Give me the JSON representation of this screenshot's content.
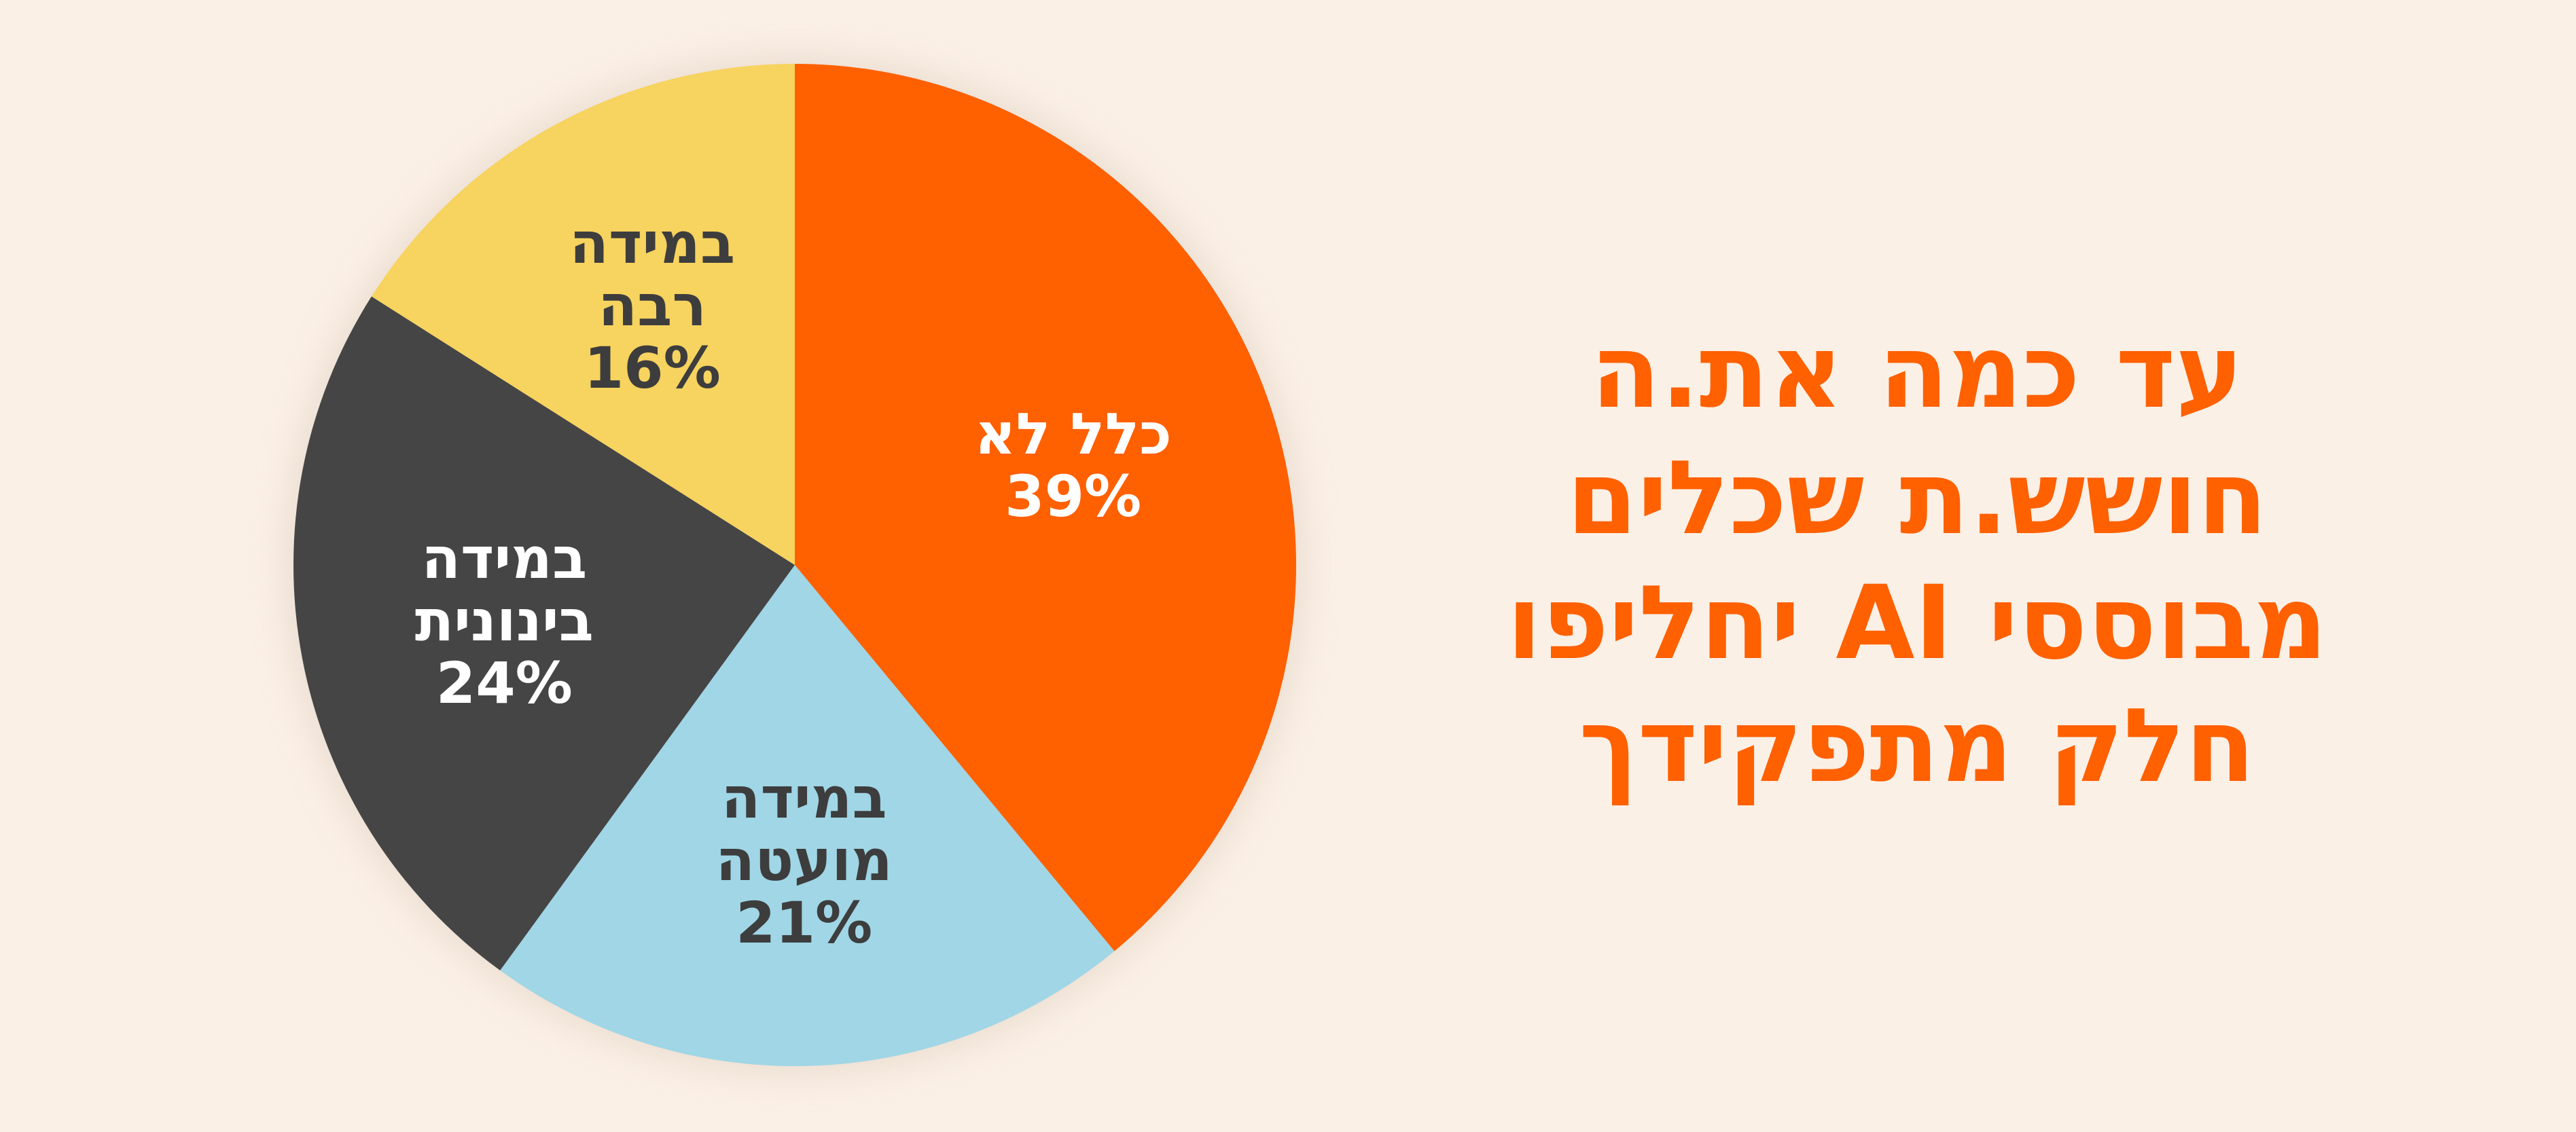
{
  "chart_data": {
    "type": "pie",
    "title": [
      "עד כמה את.ה",
      "חושש.ת שכלים",
      "מבוססי AI יחליפו",
      "חלק מתפקידך"
    ],
    "categories": [
      "כלל לא",
      "במידה\nמועטה",
      "במידה\nבינונית",
      "במידה\nרבה"
    ],
    "values": [
      39,
      21,
      24,
      16
    ],
    "value_labels": [
      "39%",
      "21%",
      "24%",
      "16%"
    ],
    "colors": [
      "#ff6000",
      "#a0d6e6",
      "#454545",
      "#f7d35f"
    ]
  }
}
